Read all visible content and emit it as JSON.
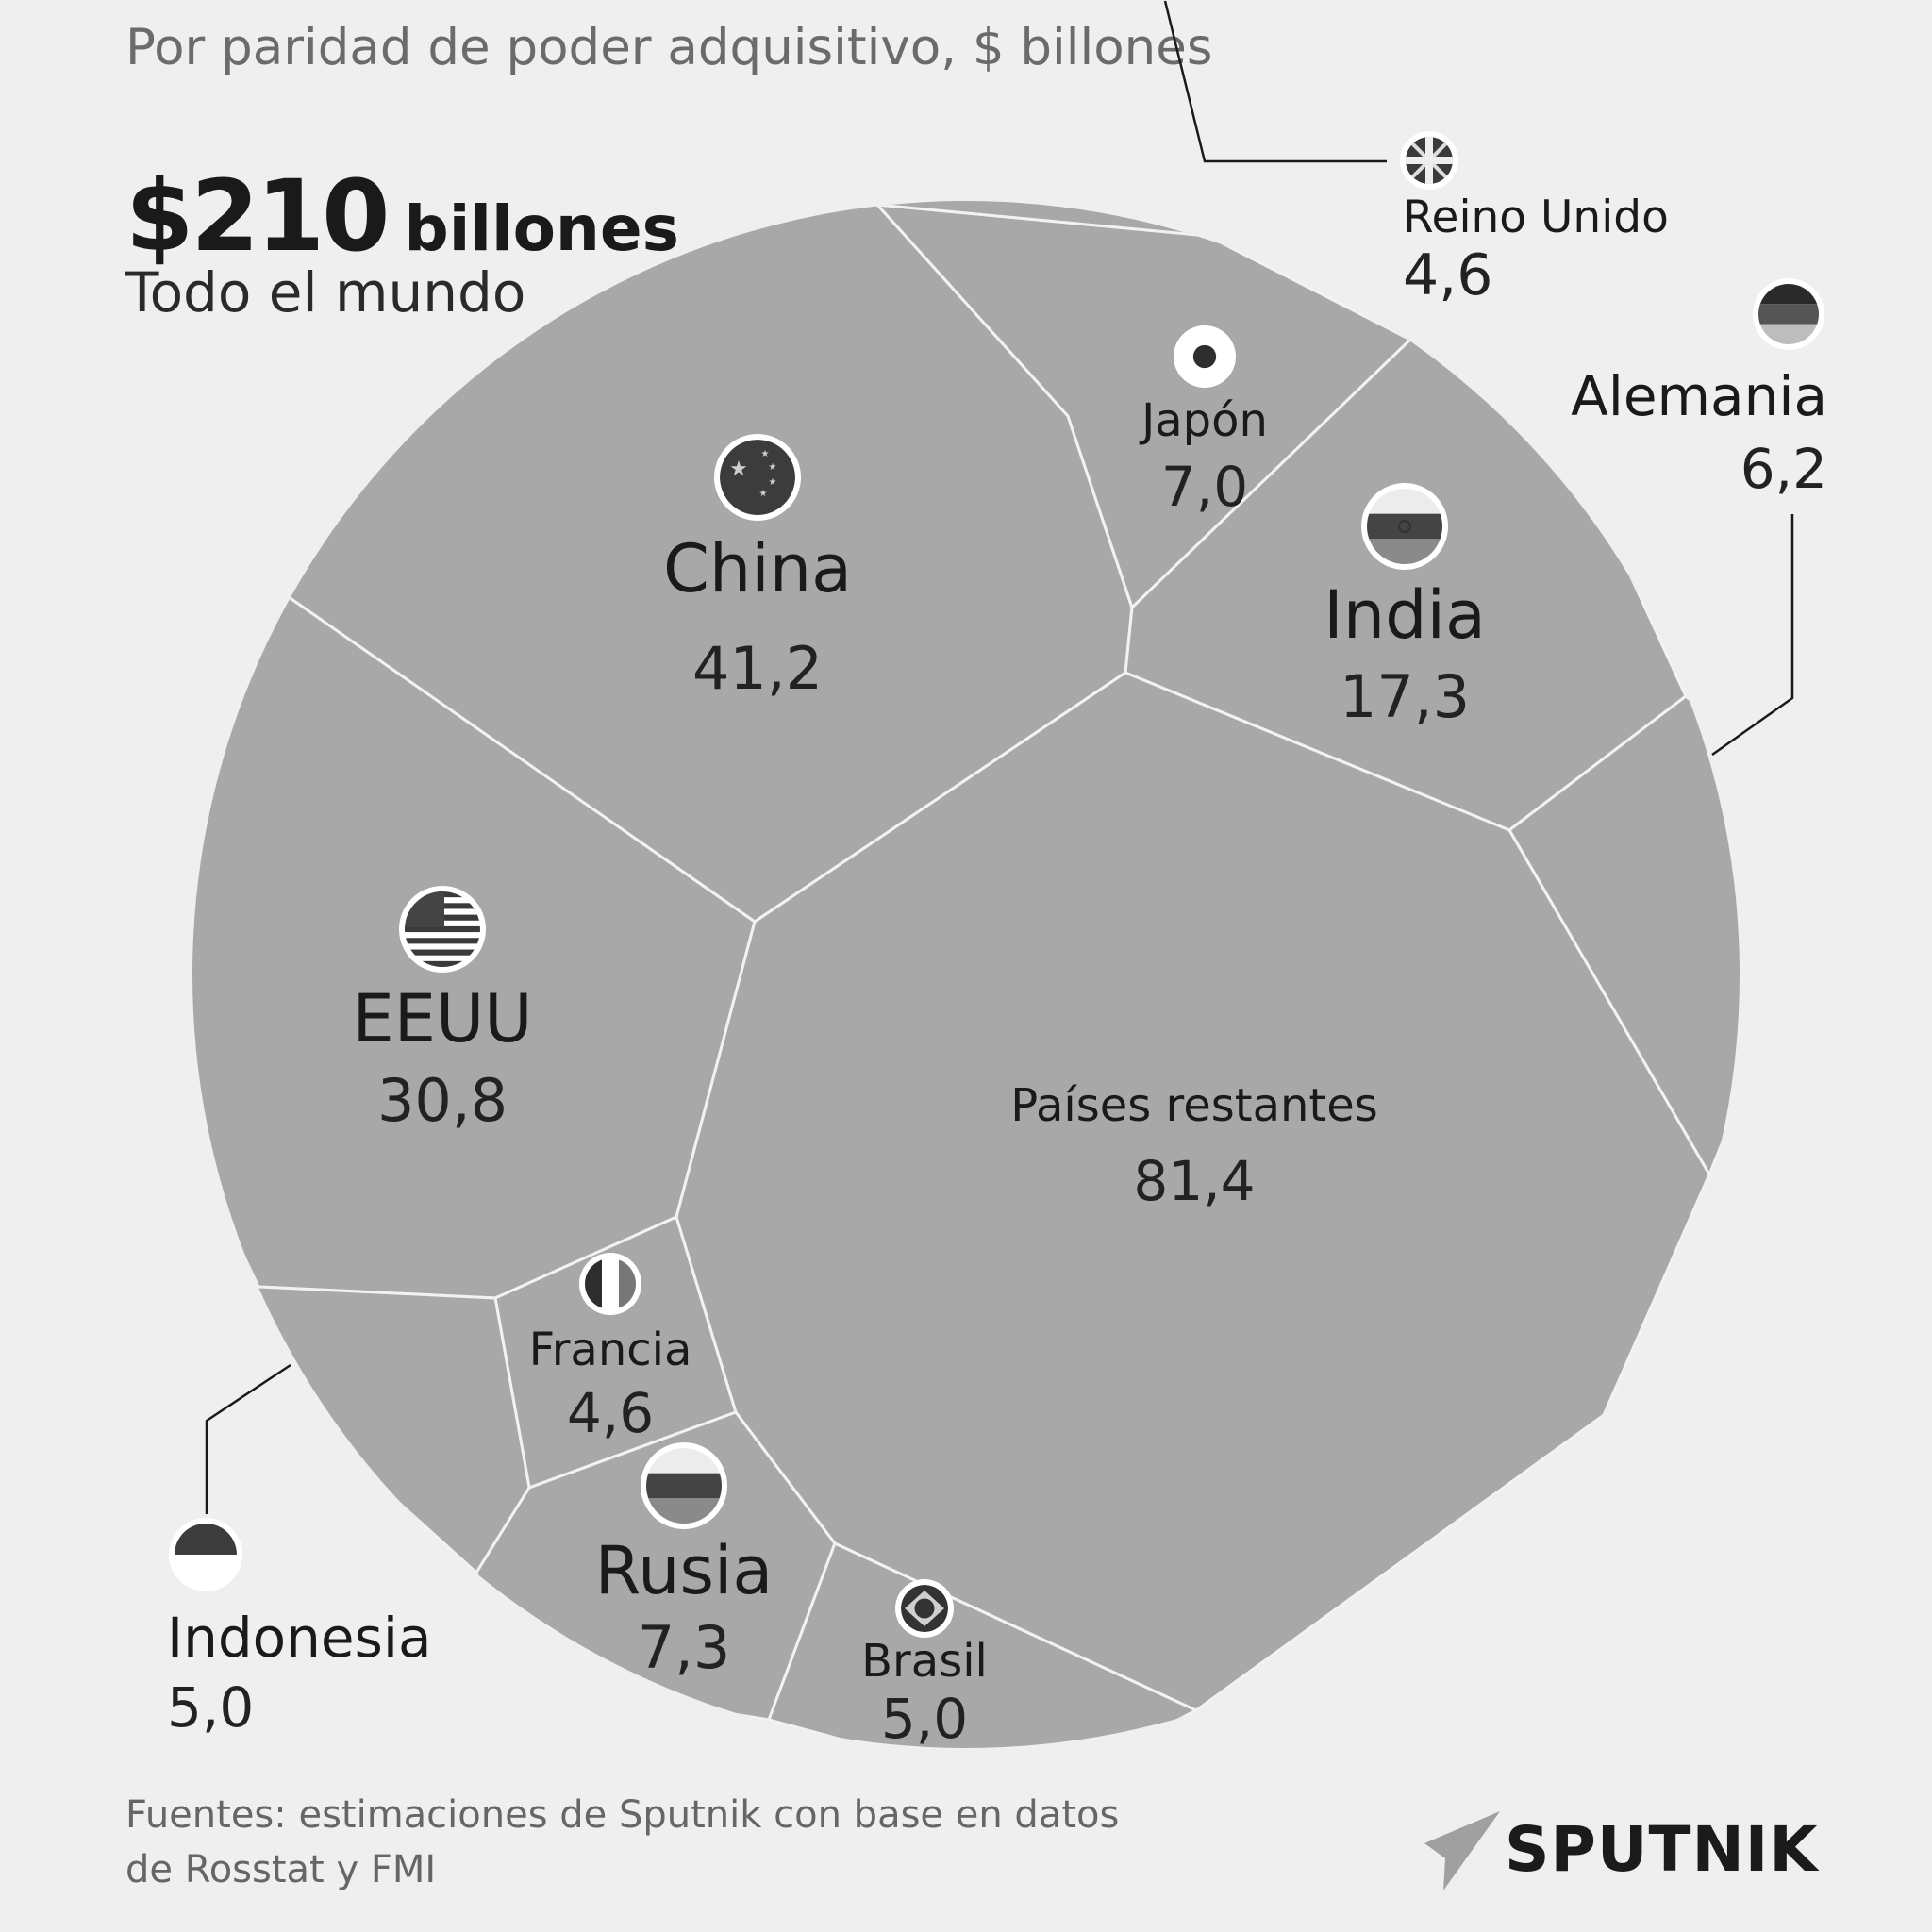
{
  "header": {
    "subtitle": "Por paridad de poder adquisitivo, $ billones",
    "total_value": "$210",
    "total_unit": "billones",
    "total_scope": "Todo el mundo"
  },
  "footer": {
    "source_line1": "Fuentes: estimaciones de Sputnik con base en datos",
    "source_line2": "de Rosstat y FMI",
    "brand": "SPUTNIK"
  },
  "colors": {
    "background": "#efefef",
    "cell": "#a8a8a8",
    "cell_border": "#f2f2f2",
    "text": "#1a1a1a"
  },
  "chart_data": {
    "type": "voronoi-treemap",
    "unit": "$ billones",
    "total": 210,
    "series": [
      {
        "name": "China",
        "value": 41.2,
        "label": "41,2",
        "icon": "china-flag-icon"
      },
      {
        "name": "EEUU",
        "value": 30.8,
        "label": "30,8",
        "icon": "usa-flag-icon"
      },
      {
        "name": "India",
        "value": 17.3,
        "label": "17,3",
        "icon": "india-flag-icon"
      },
      {
        "name": "Rusia",
        "value": 7.3,
        "label": "7,3",
        "icon": "russia-flag-icon"
      },
      {
        "name": "Japón",
        "value": 7.0,
        "label": "7,0",
        "icon": "japan-flag-icon"
      },
      {
        "name": "Alemania",
        "value": 6.2,
        "label": "6,2",
        "icon": "germany-flag-icon"
      },
      {
        "name": "Indonesia",
        "value": 5.0,
        "label": "5,0",
        "icon": "indonesia-flag-icon"
      },
      {
        "name": "Brasil",
        "value": 5.0,
        "label": "5,0",
        "icon": "brazil-flag-icon"
      },
      {
        "name": "Reino Unido",
        "value": 4.6,
        "label": "4,6",
        "icon": "uk-flag-icon"
      },
      {
        "name": "Francia",
        "value": 4.6,
        "label": "4,6",
        "icon": "france-flag-icon"
      },
      {
        "name": "Países restantes",
        "value": 81.4,
        "label": "81,4",
        "icon": ""
      }
    ]
  }
}
